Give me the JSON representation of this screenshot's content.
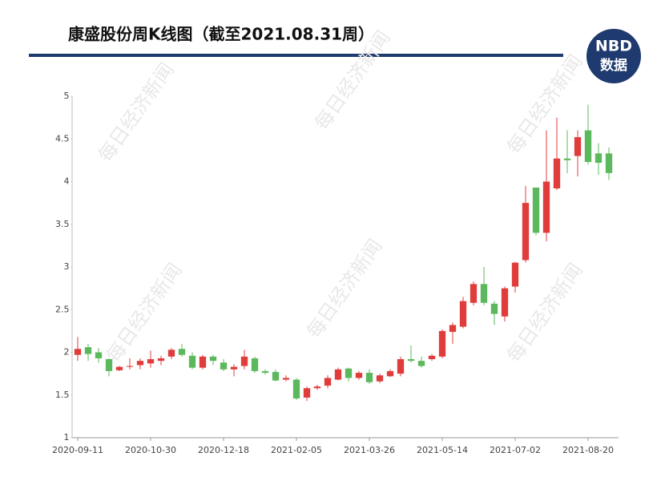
{
  "chart_data": {
    "type": "candlestick",
    "title": "康盛股份周K线图（截至2021.08.31周）",
    "logo": {
      "line1": "NBD",
      "line2": "数据"
    },
    "watermark": "每日经济新闻",
    "categories": [
      "2020-09-11",
      null,
      null,
      null,
      null,
      null,
      null,
      "2020-10-30",
      null,
      null,
      null,
      null,
      null,
      null,
      "2020-12-18",
      null,
      null,
      null,
      null,
      null,
      null,
      "2021-02-05",
      null,
      null,
      null,
      null,
      null,
      null,
      "2021-03-26",
      null,
      null,
      null,
      null,
      null,
      null,
      "2021-05-14",
      null,
      null,
      null,
      null,
      null,
      null,
      "2021-07-02",
      null,
      null,
      null,
      null,
      null,
      null,
      "2021-08-20",
      null,
      null
    ],
    "open": [
      1.97,
      2.06,
      2.0,
      1.92,
      1.79,
      1.83,
      1.85,
      1.87,
      1.9,
      1.95,
      2.04,
      1.96,
      1.82,
      1.95,
      1.88,
      1.8,
      1.84,
      1.93,
      1.78,
      1.77,
      1.68,
      1.68,
      1.47,
      1.58,
      1.61,
      1.68,
      1.81,
      1.7,
      1.76,
      1.66,
      1.72,
      1.75,
      1.92,
      1.9,
      1.92,
      1.95,
      2.24,
      2.3,
      2.58,
      2.8,
      2.57,
      2.42,
      2.77,
      3.08,
      3.93,
      3.4,
      3.92,
      4.27,
      4.3,
      4.6,
      4.33,
      4.33
    ],
    "close": [
      2.04,
      1.98,
      1.93,
      1.78,
      1.83,
      1.84,
      1.9,
      1.92,
      1.93,
      2.03,
      1.97,
      1.82,
      1.95,
      1.9,
      1.8,
      1.83,
      1.95,
      1.78,
      1.76,
      1.67,
      1.7,
      1.46,
      1.58,
      1.6,
      1.7,
      1.8,
      1.7,
      1.76,
      1.65,
      1.73,
      1.78,
      1.92,
      1.9,
      1.84,
      1.96,
      2.25,
      2.32,
      2.6,
      2.8,
      2.58,
      2.45,
      2.75,
      3.05,
      3.75,
      3.4,
      4.0,
      4.27,
      4.25,
      4.52,
      4.23,
      4.22,
      4.1
    ],
    "high": [
      2.18,
      2.1,
      2.05,
      1.93,
      1.84,
      1.93,
      1.93,
      2.02,
      1.96,
      2.05,
      2.1,
      2.0,
      1.97,
      1.97,
      1.92,
      1.86,
      2.03,
      1.95,
      1.8,
      1.8,
      1.73,
      1.7,
      1.6,
      1.62,
      1.73,
      1.82,
      1.82,
      1.78,
      1.8,
      1.75,
      1.8,
      1.95,
      2.08,
      1.95,
      1.98,
      2.27,
      2.35,
      2.65,
      2.83,
      3.0,
      2.6,
      2.77,
      3.06,
      3.95,
      3.93,
      4.6,
      4.75,
      4.6,
      4.6,
      4.9,
      4.45,
      4.4
    ],
    "low": [
      1.9,
      1.9,
      1.88,
      1.72,
      1.78,
      1.8,
      1.8,
      1.82,
      1.85,
      1.92,
      1.95,
      1.8,
      1.8,
      1.85,
      1.78,
      1.72,
      1.8,
      1.76,
      1.74,
      1.66,
      1.66,
      1.44,
      1.43,
      1.56,
      1.58,
      1.67,
      1.66,
      1.68,
      1.63,
      1.64,
      1.71,
      1.72,
      1.88,
      1.82,
      1.9,
      1.93,
      2.1,
      2.28,
      2.55,
      2.55,
      2.32,
      2.36,
      2.7,
      3.05,
      3.37,
      3.3,
      3.9,
      4.1,
      4.06,
      4.2,
      4.08,
      4.02
    ],
    "up_color": "#e03c3c",
    "down_color": "#5cb85c",
    "ylim": [
      1,
      5
    ],
    "yticks": [
      1,
      1.5,
      2,
      2.5,
      3,
      3.5,
      4,
      4.5,
      5
    ],
    "grid": false
  }
}
